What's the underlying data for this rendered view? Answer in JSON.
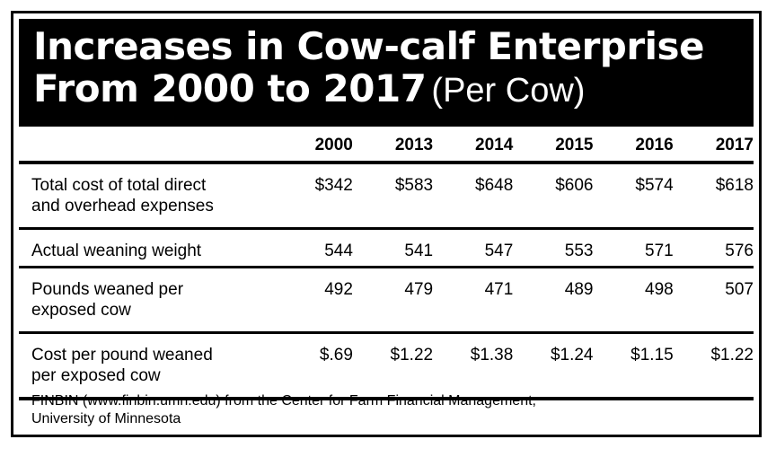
{
  "chart_data": {
    "type": "table",
    "title": "Increases in Cow-calf Enterprise From 2000 to 2017",
    "title_lines": [
      "Increases in Cow-calf Enterprise",
      "From 2000 to 2017"
    ],
    "subtitle": "(Per Cow)",
    "columns": [
      "2000",
      "2013",
      "2014",
      "2015",
      "2016",
      "2017"
    ],
    "rows": [
      {
        "label_lines": [
          "Total cost of total direct",
          "and overhead expenses"
        ],
        "values": [
          "$342",
          "$583",
          "$648",
          "$606",
          "$574",
          "$618"
        ]
      },
      {
        "label_lines": [
          "Actual weaning weight"
        ],
        "values": [
          "544",
          "541",
          "547",
          "553",
          "571",
          "576"
        ]
      },
      {
        "label_lines": [
          "Pounds weaned per",
          "exposed cow"
        ],
        "values": [
          "492",
          "479",
          "471",
          "489",
          "498",
          "507"
        ]
      },
      {
        "label_lines": [
          "Cost per pound weaned",
          "per exposed cow"
        ],
        "values": [
          "$.69",
          "$1.22",
          "$1.38",
          "$1.24",
          "$1.15",
          "$1.22"
        ]
      }
    ],
    "source_lines": [
      "FINBIN (www.finbin.umn.edu) from the Center for Farm Financial Management,",
      "University of Minnesota"
    ]
  },
  "colors": {
    "title_background": "#000000",
    "title_text": "#ffffff",
    "text": "#000000",
    "rules": "#000000"
  }
}
